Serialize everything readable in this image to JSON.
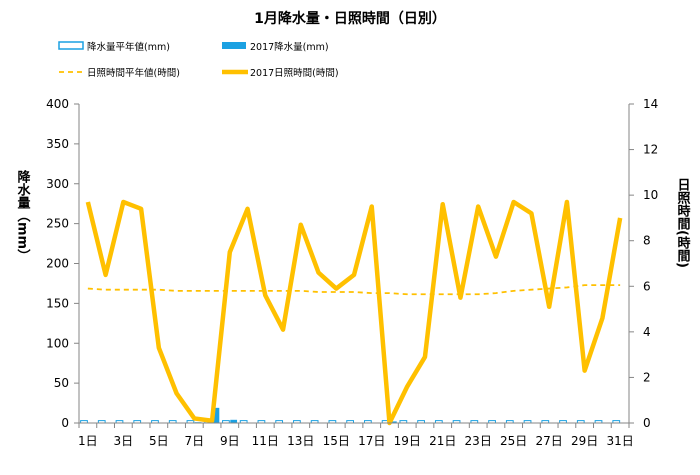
{
  "chart_data": {
    "type": "bar+line",
    "title": "1月降水量・日照時間（日別）",
    "days": [
      1,
      2,
      3,
      4,
      5,
      6,
      7,
      8,
      9,
      10,
      11,
      12,
      13,
      14,
      15,
      16,
      17,
      18,
      19,
      20,
      21,
      22,
      23,
      24,
      25,
      26,
      27,
      28,
      29,
      30,
      31
    ],
    "x_tick_labels": [
      "1日",
      "3日",
      "5日",
      "7日",
      "9日",
      "11日",
      "13日",
      "15日",
      "17日",
      "19日",
      "21日",
      "23日",
      "25日",
      "27日",
      "29日",
      "31日"
    ],
    "left_axis": {
      "label": "降水量（mm）",
      "ylim": [
        0,
        400
      ],
      "ticks": [
        0,
        50,
        100,
        150,
        200,
        250,
        300,
        350,
        400
      ]
    },
    "right_axis": {
      "label": "日照時間(時間)",
      "ylim": [
        0,
        14
      ],
      "ticks": [
        0,
        2,
        4,
        6,
        8,
        10,
        12,
        14
      ]
    },
    "grid": false,
    "legend_position": "top",
    "series": [
      {
        "name": "降水量平年値(mm)",
        "kind": "bar",
        "axis": "left",
        "style": "outline",
        "color": "#1ba1e2",
        "values": [
          3,
          3,
          3,
          3,
          3,
          3,
          3,
          3,
          3,
          3,
          3,
          3,
          3,
          3,
          3,
          3,
          3,
          3,
          3,
          3,
          3,
          3,
          3,
          3,
          3,
          3,
          3,
          3,
          3,
          3,
          3
        ]
      },
      {
        "name": "2017降水量(mm)",
        "kind": "bar",
        "axis": "left",
        "style": "filled",
        "color": "#1ba1e2",
        "values": [
          0,
          0,
          0,
          0,
          0,
          0,
          1,
          19,
          4,
          0,
          0,
          0,
          0,
          0,
          0,
          0,
          0,
          2,
          0,
          0,
          0,
          0,
          0,
          0,
          0,
          0,
          0,
          0,
          0,
          0,
          0
        ]
      },
      {
        "name": "日照時間平年値(時間)",
        "kind": "line",
        "axis": "right",
        "style": "dashed",
        "color": "#ffc000",
        "values": [
          5.9,
          5.85,
          5.85,
          5.85,
          5.85,
          5.8,
          5.8,
          5.8,
          5.8,
          5.8,
          5.8,
          5.8,
          5.8,
          5.75,
          5.75,
          5.75,
          5.7,
          5.7,
          5.65,
          5.65,
          5.65,
          5.65,
          5.65,
          5.7,
          5.8,
          5.85,
          5.9,
          5.95,
          6.05,
          6.05,
          6.05
        ]
      },
      {
        "name": "2017日照時間(時間)",
        "kind": "line",
        "axis": "right",
        "style": "solid",
        "color": "#ffc000",
        "values": [
          9.7,
          6.5,
          9.7,
          9.4,
          3.3,
          1.3,
          0.2,
          0.1,
          7.5,
          9.4,
          5.6,
          4.1,
          8.7,
          6.6,
          5.9,
          6.5,
          9.5,
          0.0,
          1.6,
          2.9,
          9.6,
          5.5,
          9.5,
          7.3,
          9.7,
          9.2,
          5.1,
          9.7,
          2.3,
          4.6,
          9.0
        ]
      }
    ]
  }
}
